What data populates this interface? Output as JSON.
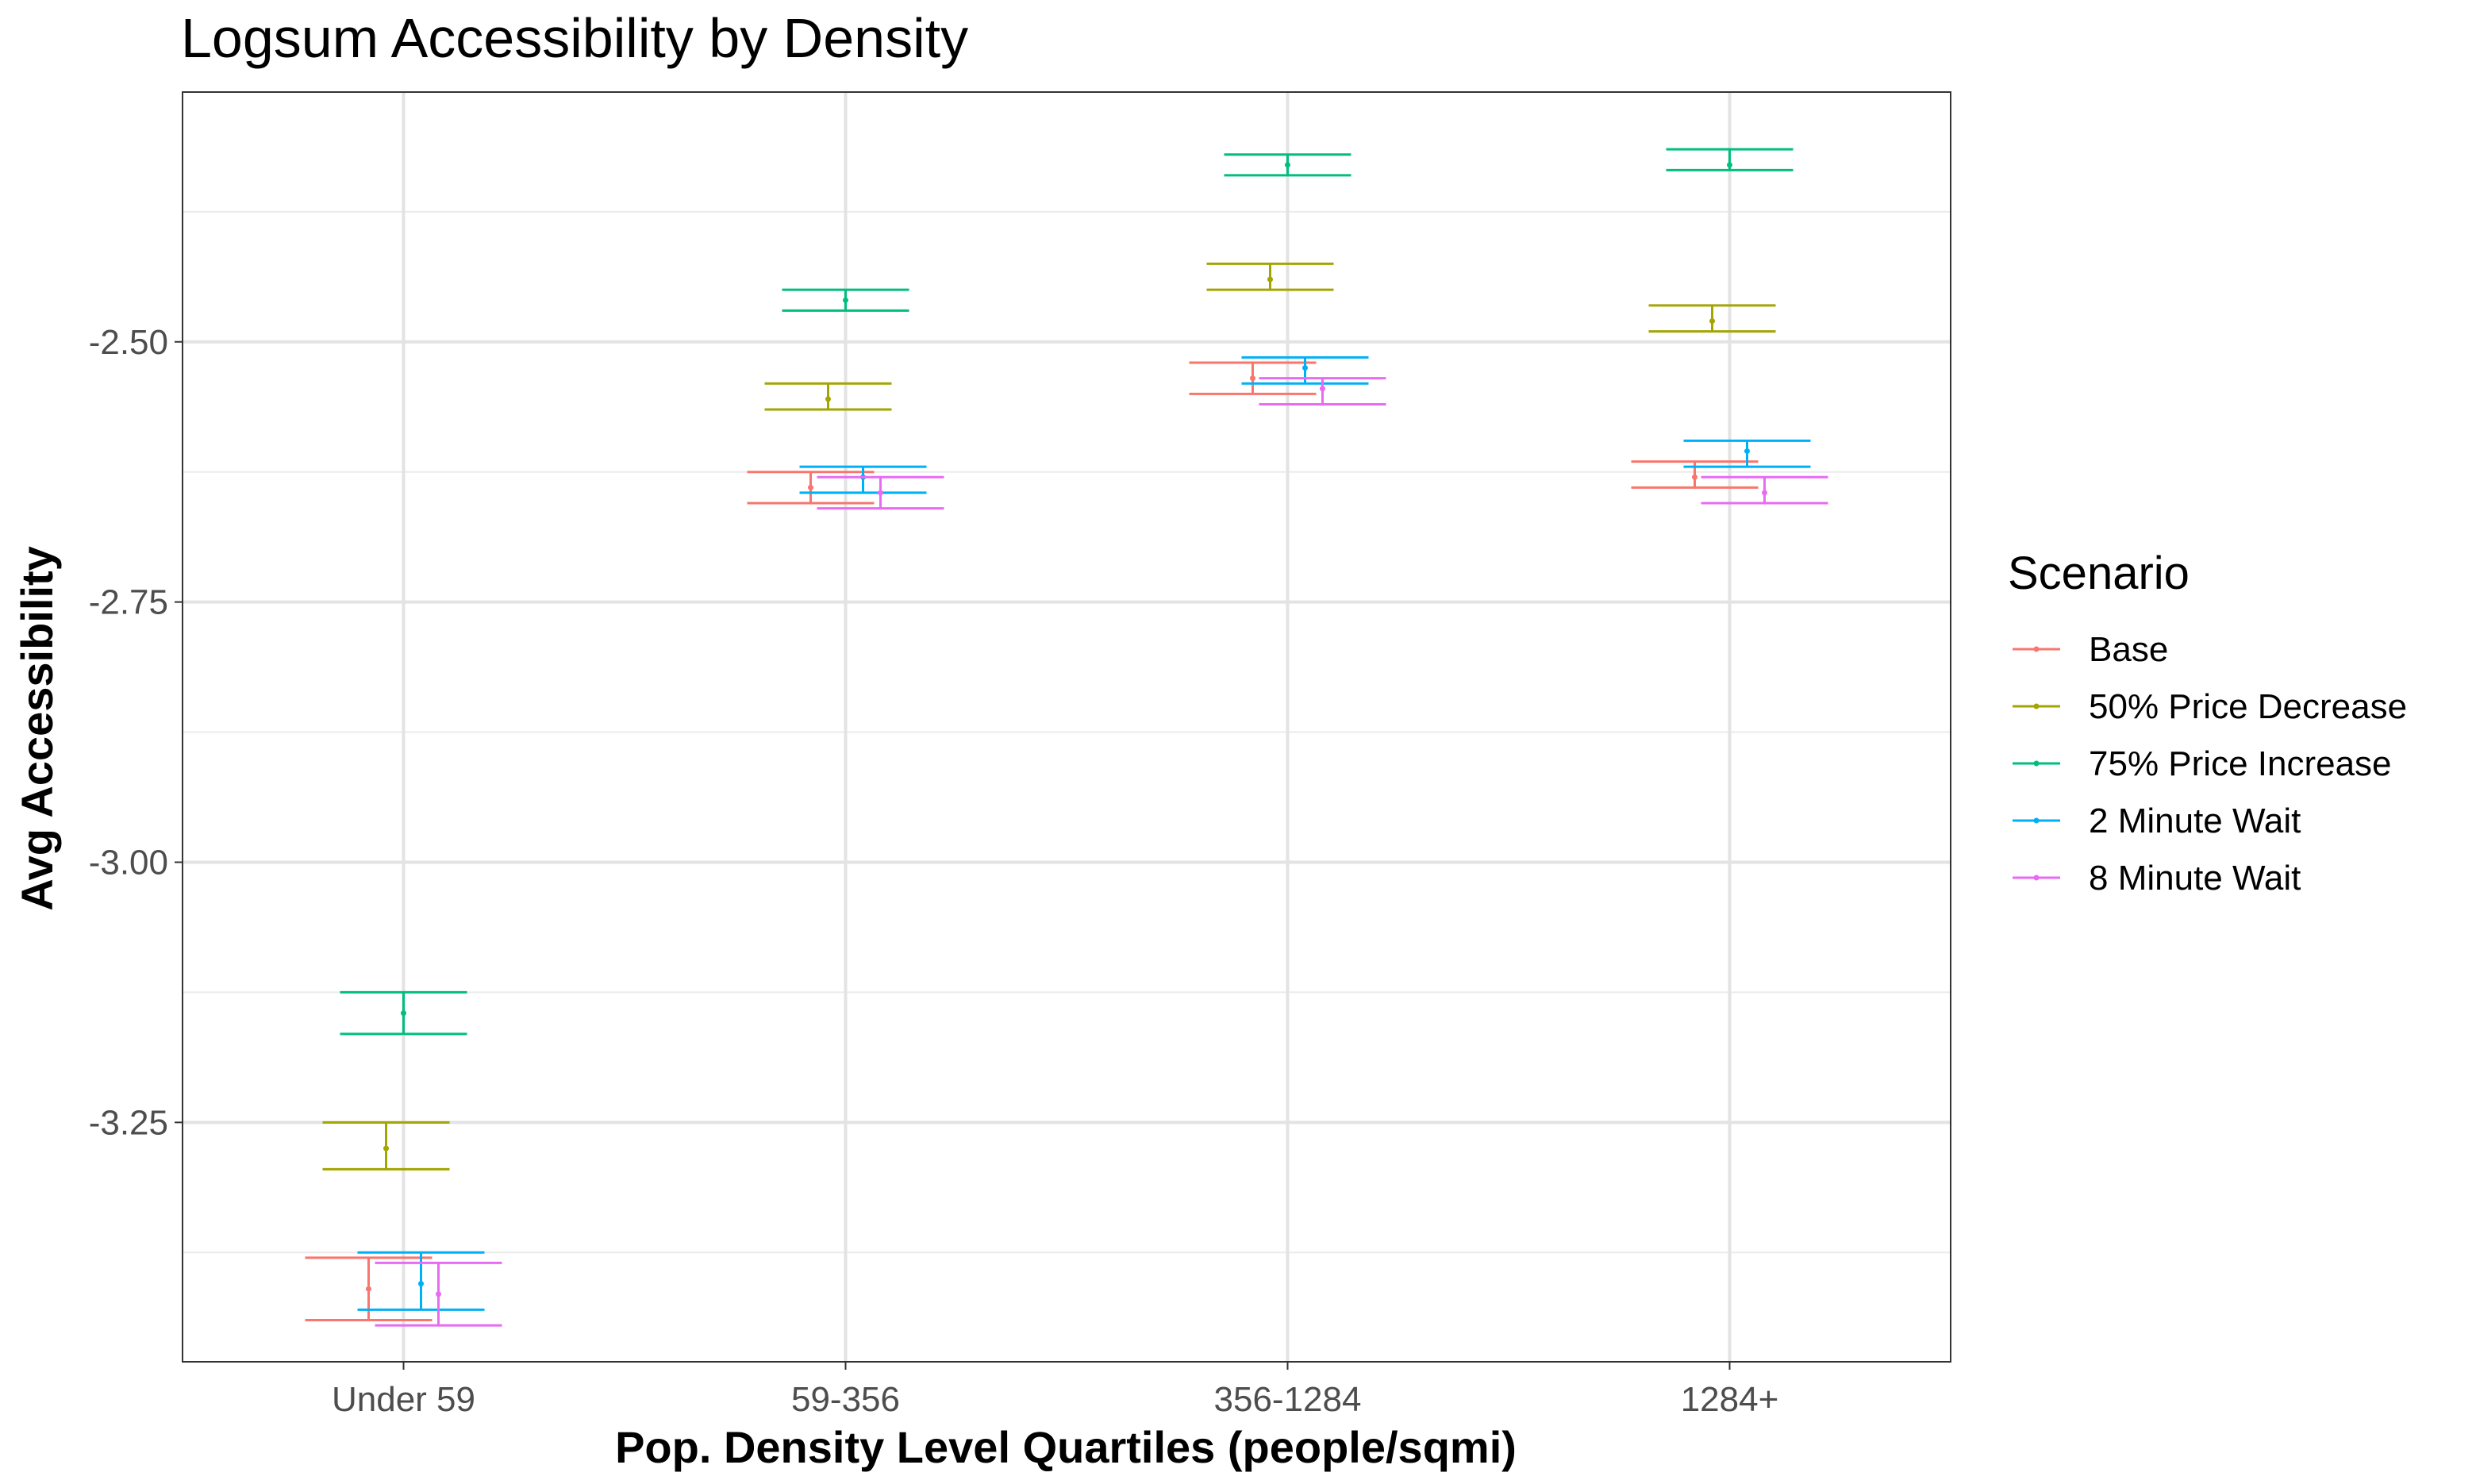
{
  "chart_data": {
    "type": "errorbar",
    "title": "Logsum Accessibility by Density",
    "xlabel": "Pop. Density Level Quartiles (people/sqmi)",
    "ylabel": "Avg Accessibility",
    "categories": [
      "Under 59",
      "59-356",
      "356-1284",
      "1284+"
    ],
    "ylim": [
      -3.48,
      -2.26
    ],
    "y_ticks": [
      {
        "value": -2.5,
        "label": "-2.50"
      },
      {
        "value": -2.75,
        "label": "-2.75"
      },
      {
        "value": -3.0,
        "label": "-3.00"
      },
      {
        "value": -3.25,
        "label": "-3.25"
      }
    ],
    "grid": true,
    "legend": {
      "title": "Scenario",
      "position": "right"
    },
    "series": [
      {
        "name": "Base",
        "color": "#F8766D",
        "mean": [
          -3.41,
          -2.64,
          -2.535,
          -2.63
        ],
        "lower": [
          -3.44,
          -2.655,
          -2.55,
          -2.64
        ],
        "upper": [
          -3.38,
          -2.625,
          -2.52,
          -2.615
        ]
      },
      {
        "name": "50% Price Decrease",
        "color": "#A3A500",
        "mean": [
          -3.275,
          -2.555,
          -2.44,
          -2.48
        ],
        "lower": [
          -3.295,
          -2.565,
          -2.45,
          -2.49
        ],
        "upper": [
          -3.25,
          -2.54,
          -2.425,
          -2.465
        ]
      },
      {
        "name": "75% Price Increase",
        "color": "#00BF7D",
        "mean": [
          -3.145,
          -2.46,
          -2.33,
          -2.33
        ],
        "lower": [
          -3.165,
          -2.47,
          -2.34,
          -2.335
        ],
        "upper": [
          -3.125,
          -2.45,
          -2.32,
          -2.315
        ]
      },
      {
        "name": "2 Minute Wait",
        "color": "#00B0F6",
        "mean": [
          -3.405,
          -2.63,
          -2.525,
          -2.605
        ],
        "lower": [
          -3.43,
          -2.645,
          -2.54,
          -2.62
        ],
        "upper": [
          -3.375,
          -2.62,
          -2.515,
          -2.595
        ]
      },
      {
        "name": "8 Minute Wait",
        "color": "#E76BF3",
        "mean": [
          -3.415,
          -2.645,
          -2.545,
          -2.645
        ],
        "lower": [
          -3.445,
          -2.66,
          -2.56,
          -2.655
        ],
        "upper": [
          -3.385,
          -2.63,
          -2.535,
          -2.63
        ]
      }
    ]
  }
}
